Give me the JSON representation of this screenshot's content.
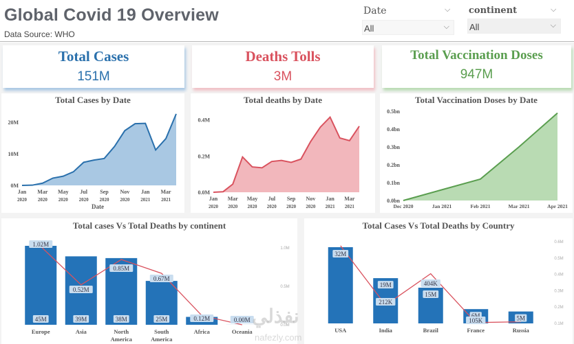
{
  "header": {
    "title": "Global Covid 19 Overview",
    "subtitle": "Data Source: WHO"
  },
  "slicers": [
    {
      "label": "Date",
      "value": "All",
      "icon": "chevron-down-icon"
    },
    {
      "label": "continent",
      "value": "All",
      "icon": "chevron-down-icon"
    }
  ],
  "cards": [
    {
      "title": "Total Cases",
      "value": "151M",
      "color": "#2a70ac"
    },
    {
      "title": "Deaths Tolls",
      "value": "3M",
      "color": "#d9525e"
    },
    {
      "title": "Total Vaccination Doses",
      "value": "947M",
      "color": "#5a9e4f"
    }
  ],
  "colors": {
    "cases": "#2a70ac",
    "cases_fill": "#a9c8e3",
    "deaths": "#d9525e",
    "deaths_fill": "#f2b7bc",
    "vacc": "#5a9e4f",
    "vacc_fill": "#b9dbb3",
    "bar": "#2473b8",
    "line": "#d9525e"
  },
  "watermark": {
    "arabic": "نفذلي",
    "latin": "nafezly.com"
  },
  "chart_data": [
    {
      "type": "area",
      "title": "Total Cases by Date",
      "xlabel": "Date",
      "ylabel": "",
      "x_tick_labels": [
        [
          "Jan",
          "2020"
        ],
        [
          "Mar",
          "2020"
        ],
        [
          "May",
          "2020"
        ],
        [
          "Jul",
          "2020"
        ],
        [
          "Sep",
          "2020"
        ],
        [
          "Nov",
          "2020"
        ],
        [
          "Jan",
          "2021"
        ],
        [
          "Mar",
          "2021"
        ]
      ],
      "y_tick_labels": [
        "0M",
        "10M",
        "20M"
      ],
      "y_ticks": [
        0,
        10,
        20
      ],
      "ylim": [
        0,
        23
      ],
      "unit": "M",
      "x": [
        "Jan 2020",
        "Feb 2020",
        "Mar 2020",
        "Apr 2020",
        "May 2020",
        "Jun 2020",
        "Jul 2020",
        "Aug 2020",
        "Sep 2020",
        "Oct 2020",
        "Nov 2020",
        "Dec 2020",
        "Jan 2021",
        "Feb 2021",
        "Mar 2021",
        "Apr 2021"
      ],
      "values": [
        0.01,
        0.07,
        0.7,
        2.3,
        2.9,
        4.3,
        7.3,
        8.0,
        8.5,
        12.3,
        17.3,
        19.5,
        19.6,
        11.2,
        14.8,
        22.6
      ]
    },
    {
      "type": "area",
      "title": "Total deaths by Date",
      "xlabel": "",
      "ylabel": "",
      "x_tick_labels": [
        [
          "Jan",
          "2020"
        ],
        [
          "Mar",
          "2020"
        ],
        [
          "May",
          "2020"
        ],
        [
          "Jul",
          "2020"
        ],
        [
          "Sep",
          "2020"
        ],
        [
          "Nov",
          "2020"
        ],
        [
          "Jan",
          "2021"
        ],
        [
          "Mar",
          "2021"
        ]
      ],
      "y_tick_labels": [
        "0.0M",
        "0.2M",
        "0.4M"
      ],
      "y_ticks": [
        0,
        0.2,
        0.4
      ],
      "ylim": [
        0,
        0.44
      ],
      "unit": "M",
      "x": [
        "Jan 2020",
        "Feb 2020",
        "Mar 2020",
        "Apr 2020",
        "May 2020",
        "Jun 2020",
        "Jul 2020",
        "Aug 2020",
        "Sep 2020",
        "Oct 2020",
        "Nov 2020",
        "Dec 2020",
        "Jan 2021",
        "Feb 2021",
        "Mar 2021",
        "Apr 2021"
      ],
      "values": [
        0.0,
        0.003,
        0.045,
        0.195,
        0.14,
        0.135,
        0.17,
        0.176,
        0.165,
        0.183,
        0.28,
        0.36,
        0.415,
        0.3,
        0.285,
        0.365
      ]
    },
    {
      "type": "area",
      "title": "Total Vaccination Doses by Date",
      "xlabel": "",
      "ylabel": "",
      "x_tick_labels": [
        "Dec 2020",
        "Jan 2021",
        "Feb 2021",
        "Mar 2021",
        "Apr 2021"
      ],
      "y_tick_labels": [
        "0.0bn",
        "0.1bn",
        "0.2bn",
        "0.3bn",
        "0.4bn",
        "0.5bn"
      ],
      "y_ticks": [
        0,
        0.1,
        0.2,
        0.3,
        0.4,
        0.5
      ],
      "ylim": [
        0,
        0.5
      ],
      "unit": "bn",
      "x": [
        "Dec 2020",
        "Jan 2021",
        "Feb 2021",
        "Mar 2021",
        "Apr 2021"
      ],
      "values": [
        0.0,
        0.06,
        0.12,
        0.3,
        0.49
      ]
    },
    {
      "type": "bar",
      "title": "Total cases Vs Total Deaths by continent",
      "categories": [
        [
          "Europe"
        ],
        [
          "Asia"
        ],
        [
          "North",
          "America"
        ],
        [
          "South",
          "America"
        ],
        [
          "Africa"
        ],
        [
          "Oceania"
        ]
      ],
      "series": [
        {
          "name": "Total Cases",
          "kind": "bar",
          "values": [
            45,
            39,
            38,
            25,
            4.5,
            0.03
          ],
          "labels": [
            "45M",
            "39M",
            "38M",
            "25M",
            "",
            ""
          ]
        },
        {
          "name": "Total Deaths",
          "kind": "line",
          "values": [
            1.02,
            0.52,
            0.85,
            0.67,
            0.12,
            0.0
          ],
          "labels": [
            "1.02M",
            "0.52M",
            "0.85M",
            "0.67M",
            "0.12M",
            "0.00M"
          ]
        }
      ],
      "bar_ylim": [
        0,
        45
      ],
      "line_ylim": [
        0,
        1.1
      ],
      "right_axis_ticks": [
        {
          "v": 1.0,
          "label": "1.0M"
        },
        {
          "v": 0.5,
          "label": "0.5M"
        },
        {
          "v": 0.0,
          "label": "0.0M"
        }
      ]
    },
    {
      "type": "bar",
      "title": "Total Cases Vs Total Deaths by Country",
      "categories": [
        [
          "USA"
        ],
        [
          "India"
        ],
        [
          "Brazil"
        ],
        [
          "France"
        ],
        [
          "Russia"
        ]
      ],
      "series": [
        {
          "name": "Total Cases",
          "kind": "bar",
          "values": [
            32,
            19,
            15,
            6,
            5
          ],
          "labels": [
            "32M",
            "19M",
            "15M",
            "6M",
            "5M"
          ]
        },
        {
          "name": "Total Deaths",
          "kind": "line",
          "values": [
            0.575,
            0.212,
            0.404,
            0.105,
            0.11
          ],
          "labels": [
            "",
            "212K",
            "404K",
            "105K",
            ""
          ]
        }
      ],
      "bar_ylim": [
        0,
        32
      ],
      "line_ylim": [
        0.1,
        0.6
      ],
      "right_axis_ticks": [
        {
          "v": 0.6,
          "label": "0.6M"
        },
        {
          "v": 0.5,
          "label": "0.5M"
        },
        {
          "v": 0.4,
          "label": "0.4M"
        },
        {
          "v": 0.3,
          "label": "0.3M"
        },
        {
          "v": 0.2,
          "label": "0.2M"
        },
        {
          "v": 0.1,
          "label": "0.1M"
        }
      ]
    }
  ]
}
